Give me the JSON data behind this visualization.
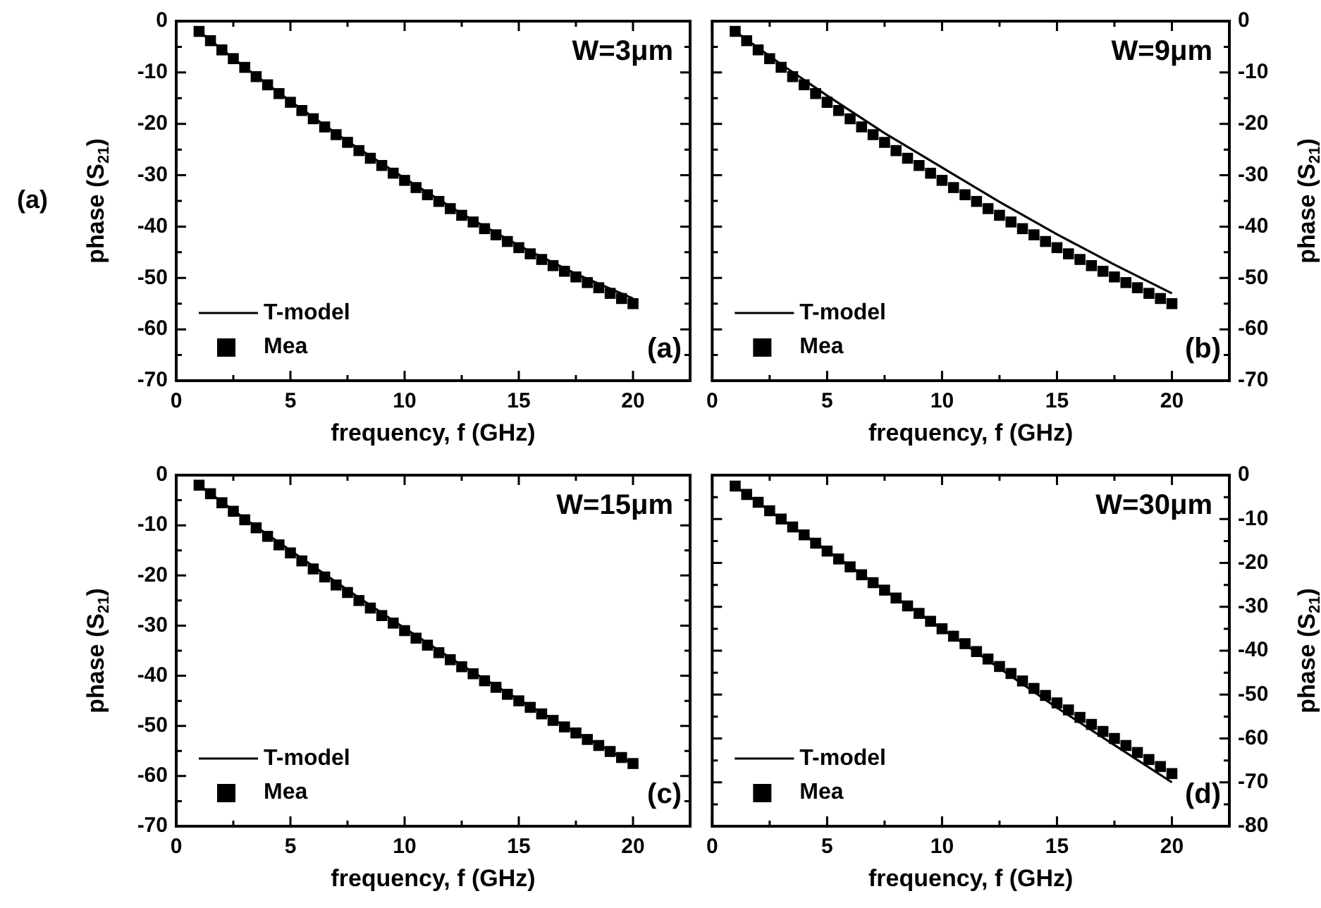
{
  "chart_data": [
    {
      "type": "scatter",
      "xlabel": "frequency, f (GHz)",
      "ylabel": "phase (S$_{21}$)",
      "annotations": [
        "W=3μm",
        "(a)",
        "(a)"
      ],
      "legend": "bottom left",
      "xlim": [
        0,
        22.5
      ],
      "xticks": [
        0,
        {
          "value": 2.5,
          "label": null
        },
        5,
        {
          "value": 7.5,
          "label": null
        },
        10,
        {
          "value": 12.5,
          "label": null
        },
        15,
        {
          "value": 17.5,
          "label": null
        },
        20
      ],
      "ylim": [
        -70,
        0
      ],
      "yticks": [
        -70,
        {
          "value": -65,
          "label": null
        },
        -60,
        {
          "value": -55,
          "label": null
        },
        -50,
        {
          "value": -45,
          "label": null
        },
        -40,
        {
          "value": -35,
          "label": null
        },
        -30,
        {
          "value": -25,
          "label": null
        },
        -20,
        {
          "value": -15,
          "label": null
        },
        -10,
        {
          "value": -5,
          "label": null
        },
        0
      ],
      "x": [
        1,
        1.5,
        2,
        2.5,
        3,
        3.5,
        4,
        4.5,
        5,
        5.5,
        6,
        6.5,
        7,
        7.5,
        8,
        8.5,
        9,
        9.5,
        10,
        10.5,
        11,
        11.5,
        12,
        12.5,
        13,
        13.5,
        14,
        14.5,
        15,
        15.5,
        16,
        16.5,
        17,
        17.5,
        18,
        18.5,
        19,
        19.5,
        20
      ],
      "series": [
        {
          "name": "T-model",
          "type": "line",
          "marker": "none",
          "color": "#000000",
          "x": [
            1,
            3,
            5,
            7.5,
            10,
            12.5,
            15,
            17.5,
            20
          ],
          "values": [
            -2,
            -9,
            -15.6,
            -23.4,
            -30.6,
            -37.5,
            -43.7,
            -49.2,
            -54
          ]
        },
        {
          "name": "Mea",
          "marker": "square",
          "color": "#000000",
          "values": [
            -2.0,
            -3.8,
            -5.6,
            -7.3,
            -9.0,
            -10.8,
            -12.4,
            -14.1,
            -15.8,
            -17.4,
            -19.0,
            -20.6,
            -22.1,
            -23.6,
            -25.2,
            -26.7,
            -28.1,
            -29.6,
            -31.0,
            -32.4,
            -33.8,
            -35.1,
            -36.5,
            -37.8,
            -39.1,
            -40.4,
            -41.6,
            -42.9,
            -44.1,
            -45.3,
            -46.4,
            -47.6,
            -48.7,
            -49.8,
            -50.9,
            -51.9,
            -53.0,
            -54.0,
            -55.0
          ]
        }
      ]
    },
    {
      "type": "scatter",
      "xlabel": "frequency, f (GHz)",
      "y2label": "phase (S$_{21}$)",
      "annotations": [
        "W=9μm",
        "(b)"
      ],
      "legend": "bottom left",
      "xlim": [
        0,
        22.5
      ],
      "xticks": [
        0,
        {
          "value": 2.5,
          "label": null
        },
        5,
        {
          "value": 7.5,
          "label": null
        },
        10,
        {
          "value": 12.5,
          "label": null
        },
        15,
        {
          "value": 17.5,
          "label": null
        },
        20
      ],
      "y2lim": [
        -70,
        0
      ],
      "y2ticks": [
        -70,
        {
          "value": -65,
          "label": null
        },
        -60,
        {
          "value": -55,
          "label": null
        },
        -50,
        {
          "value": -45,
          "label": null
        },
        -40,
        {
          "value": -35,
          "label": null
        },
        -30,
        {
          "value": -25,
          "label": null
        },
        -20,
        {
          "value": -15,
          "label": null
        },
        -10,
        {
          "value": -5,
          "label": null
        },
        0
      ],
      "x": [
        1,
        1.5,
        2,
        2.5,
        3,
        3.5,
        4,
        4.5,
        5,
        5.5,
        6,
        6.5,
        7,
        7.5,
        8,
        8.5,
        9,
        9.5,
        10,
        10.5,
        11,
        11.5,
        12,
        12.5,
        13,
        13.5,
        14,
        14.5,
        15,
        15.5,
        16,
        16.5,
        17,
        17.5,
        18,
        18.5,
        19,
        19.5,
        20
      ],
      "series": [
        {
          "name": "T-model",
          "type": "line",
          "marker": "none",
          "axis": "y2",
          "color": "#000000",
          "x": [
            1,
            3,
            5,
            7.5,
            10,
            12.5,
            15,
            17.5,
            20
          ],
          "values": [
            -2,
            -8.4,
            -14.5,
            -21.8,
            -28.5,
            -35.2,
            -41.5,
            -47.4,
            -53
          ]
        },
        {
          "name": "Mea",
          "marker": "square",
          "axis": "y2",
          "color": "#000000",
          "values": [
            -2.0,
            -3.8,
            -5.6,
            -7.3,
            -9.0,
            -10.8,
            -12.4,
            -14.1,
            -15.8,
            -17.4,
            -19.0,
            -20.6,
            -22.1,
            -23.6,
            -25.2,
            -26.7,
            -28.1,
            -29.6,
            -31.0,
            -32.4,
            -33.8,
            -35.1,
            -36.5,
            -37.8,
            -39.1,
            -40.4,
            -41.6,
            -42.9,
            -44.1,
            -45.3,
            -46.4,
            -47.6,
            -48.7,
            -49.8,
            -50.9,
            -51.9,
            -53.0,
            -54.0,
            -55.0
          ]
        }
      ]
    },
    {
      "type": "scatter",
      "xlabel": "frequency, f (GHz)",
      "ylabel": "phase (S$_{21}$)",
      "annotations": [
        "W=15μm",
        "(c)"
      ],
      "legend": "bottom left",
      "xlim": [
        0,
        22.5
      ],
      "xticks": [
        0,
        {
          "value": 2.5,
          "label": null
        },
        5,
        {
          "value": 7.5,
          "label": null
        },
        10,
        {
          "value": 12.5,
          "label": null
        },
        15,
        {
          "value": 17.5,
          "label": null
        },
        20
      ],
      "ylim": [
        -70,
        0
      ],
      "yticks": [
        -70,
        {
          "value": -65,
          "label": null
        },
        -60,
        {
          "value": -55,
          "label": null
        },
        -50,
        {
          "value": -45,
          "label": null
        },
        -40,
        {
          "value": -35,
          "label": null
        },
        -30,
        {
          "value": -25,
          "label": null
        },
        -20,
        {
          "value": -15,
          "label": null
        },
        -10,
        {
          "value": -5,
          "label": null
        },
        0
      ],
      "x": [
        1,
        1.5,
        2,
        2.5,
        3,
        3.5,
        4,
        4.5,
        5,
        5.5,
        6,
        6.5,
        7,
        7.5,
        8,
        8.5,
        9,
        9.5,
        10,
        10.5,
        11,
        11.5,
        12,
        12.5,
        13,
        13.5,
        14,
        14.5,
        15,
        15.5,
        16,
        16.5,
        17,
        17.5,
        18,
        18.5,
        19,
        19.5,
        20
      ],
      "series": [
        {
          "name": "T-model",
          "type": "line",
          "marker": "none",
          "color": "#000000",
          "x": [
            1,
            3,
            5,
            7.5,
            10,
            12.5,
            15,
            17.5,
            20
          ],
          "values": [
            -2,
            -8.7,
            -15,
            -22.9,
            -30.5,
            -37.9,
            -44.8,
            -51.3,
            -57.5
          ]
        },
        {
          "name": "Mea",
          "marker": "square",
          "color": "#000000",
          "values": [
            -2.0,
            -3.7,
            -5.5,
            -7.2,
            -8.9,
            -10.5,
            -12.2,
            -13.9,
            -15.5,
            -17.1,
            -18.7,
            -20.3,
            -21.9,
            -23.4,
            -25.0,
            -26.5,
            -28.0,
            -29.5,
            -31.0,
            -32.5,
            -33.9,
            -35.4,
            -36.8,
            -38.2,
            -39.6,
            -41.0,
            -42.3,
            -43.7,
            -45.0,
            -46.3,
            -47.6,
            -48.9,
            -50.2,
            -51.4,
            -52.7,
            -53.9,
            -55.1,
            -56.3,
            -57.5
          ]
        }
      ]
    },
    {
      "type": "scatter",
      "xlabel": "frequency, f (GHz)",
      "y2label": "phase (S$_{21}$)",
      "annotations": [
        "W=30μm",
        "(d)"
      ],
      "legend": "bottom left",
      "xlim": [
        0,
        22.5
      ],
      "xticks": [
        0,
        {
          "value": 2.5,
          "label": null
        },
        5,
        {
          "value": 7.5,
          "label": null
        },
        10,
        {
          "value": 12.5,
          "label": null
        },
        15,
        {
          "value": 17.5,
          "label": null
        },
        20
      ],
      "y2lim": [
        -80,
        0
      ],
      "y2ticks": [
        -80,
        {
          "value": -75,
          "label": null
        },
        -70,
        {
          "value": -65,
          "label": null
        },
        -60,
        {
          "value": -55,
          "label": null
        },
        -50,
        {
          "value": -45,
          "label": null
        },
        -40,
        {
          "value": -35,
          "label": null
        },
        -30,
        {
          "value": -25,
          "label": null
        },
        -20,
        {
          "value": -15,
          "label": null
        },
        -10,
        {
          "value": -5,
          "label": null
        },
        0
      ],
      "x": [
        1,
        1.5,
        2,
        2.5,
        3,
        3.5,
        4,
        4.5,
        5,
        5.5,
        6,
        6.5,
        7,
        7.5,
        8,
        8.5,
        9,
        9.5,
        10,
        10.5,
        11,
        11.5,
        12,
        12.5,
        13,
        13.5,
        14,
        14.5,
        15,
        15.5,
        16,
        16.5,
        17,
        17.5,
        18,
        18.5,
        19,
        19.5,
        20
      ],
      "series": [
        {
          "name": "T-model",
          "type": "line",
          "marker": "none",
          "axis": "y2",
          "color": "#000000",
          "x": [
            1,
            3,
            5,
            7.5,
            10,
            12.5,
            15,
            17.5,
            20
          ],
          "values": [
            -2.5,
            -10,
            -17.2,
            -26.2,
            -35,
            -44,
            -53,
            -61.5,
            -70
          ]
        },
        {
          "name": "Mea",
          "marker": "square",
          "axis": "y2",
          "color": "#000000",
          "values": [
            -2.5,
            -4.4,
            -6.2,
            -8.1,
            -10.0,
            -11.8,
            -13.6,
            -15.5,
            -17.3,
            -19.1,
            -20.9,
            -22.7,
            -24.5,
            -26.2,
            -28.0,
            -29.8,
            -31.5,
            -33.3,
            -35.0,
            -36.7,
            -38.4,
            -40.2,
            -41.9,
            -43.6,
            -45.2,
            -46.9,
            -48.6,
            -50.2,
            -51.9,
            -53.5,
            -55.2,
            -56.8,
            -58.4,
            -60.0,
            -61.6,
            -63.2,
            -64.8,
            -66.4,
            -68.0
          ]
        }
      ]
    }
  ]
}
